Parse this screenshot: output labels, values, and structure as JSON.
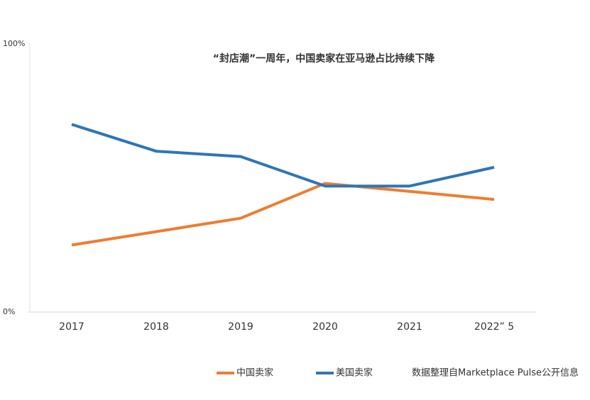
{
  "chart_data": {
    "type": "line",
    "title": "“封店潮”一周年，中国卖家在亚马逊占比持续下降",
    "categories": [
      "2017",
      "2018",
      "2019",
      "2020",
      "2021",
      "2022” 5"
    ],
    "series": [
      {
        "name": "中国卖家",
        "color": "#ed7d31",
        "values": [
          25,
          30,
          35,
          48,
          45,
          42
        ]
      },
      {
        "name": "美国卖家",
        "color": "#2e75b6",
        "values": [
          70,
          60,
          58,
          47,
          47,
          54
        ]
      }
    ],
    "ylim": [
      0,
      100
    ],
    "yticks": [
      {
        "value": 0,
        "label": "0%"
      },
      {
        "value": 100,
        "label": "100%"
      }
    ],
    "note": "数据整理自Marketplace Pulse公开信息"
  }
}
